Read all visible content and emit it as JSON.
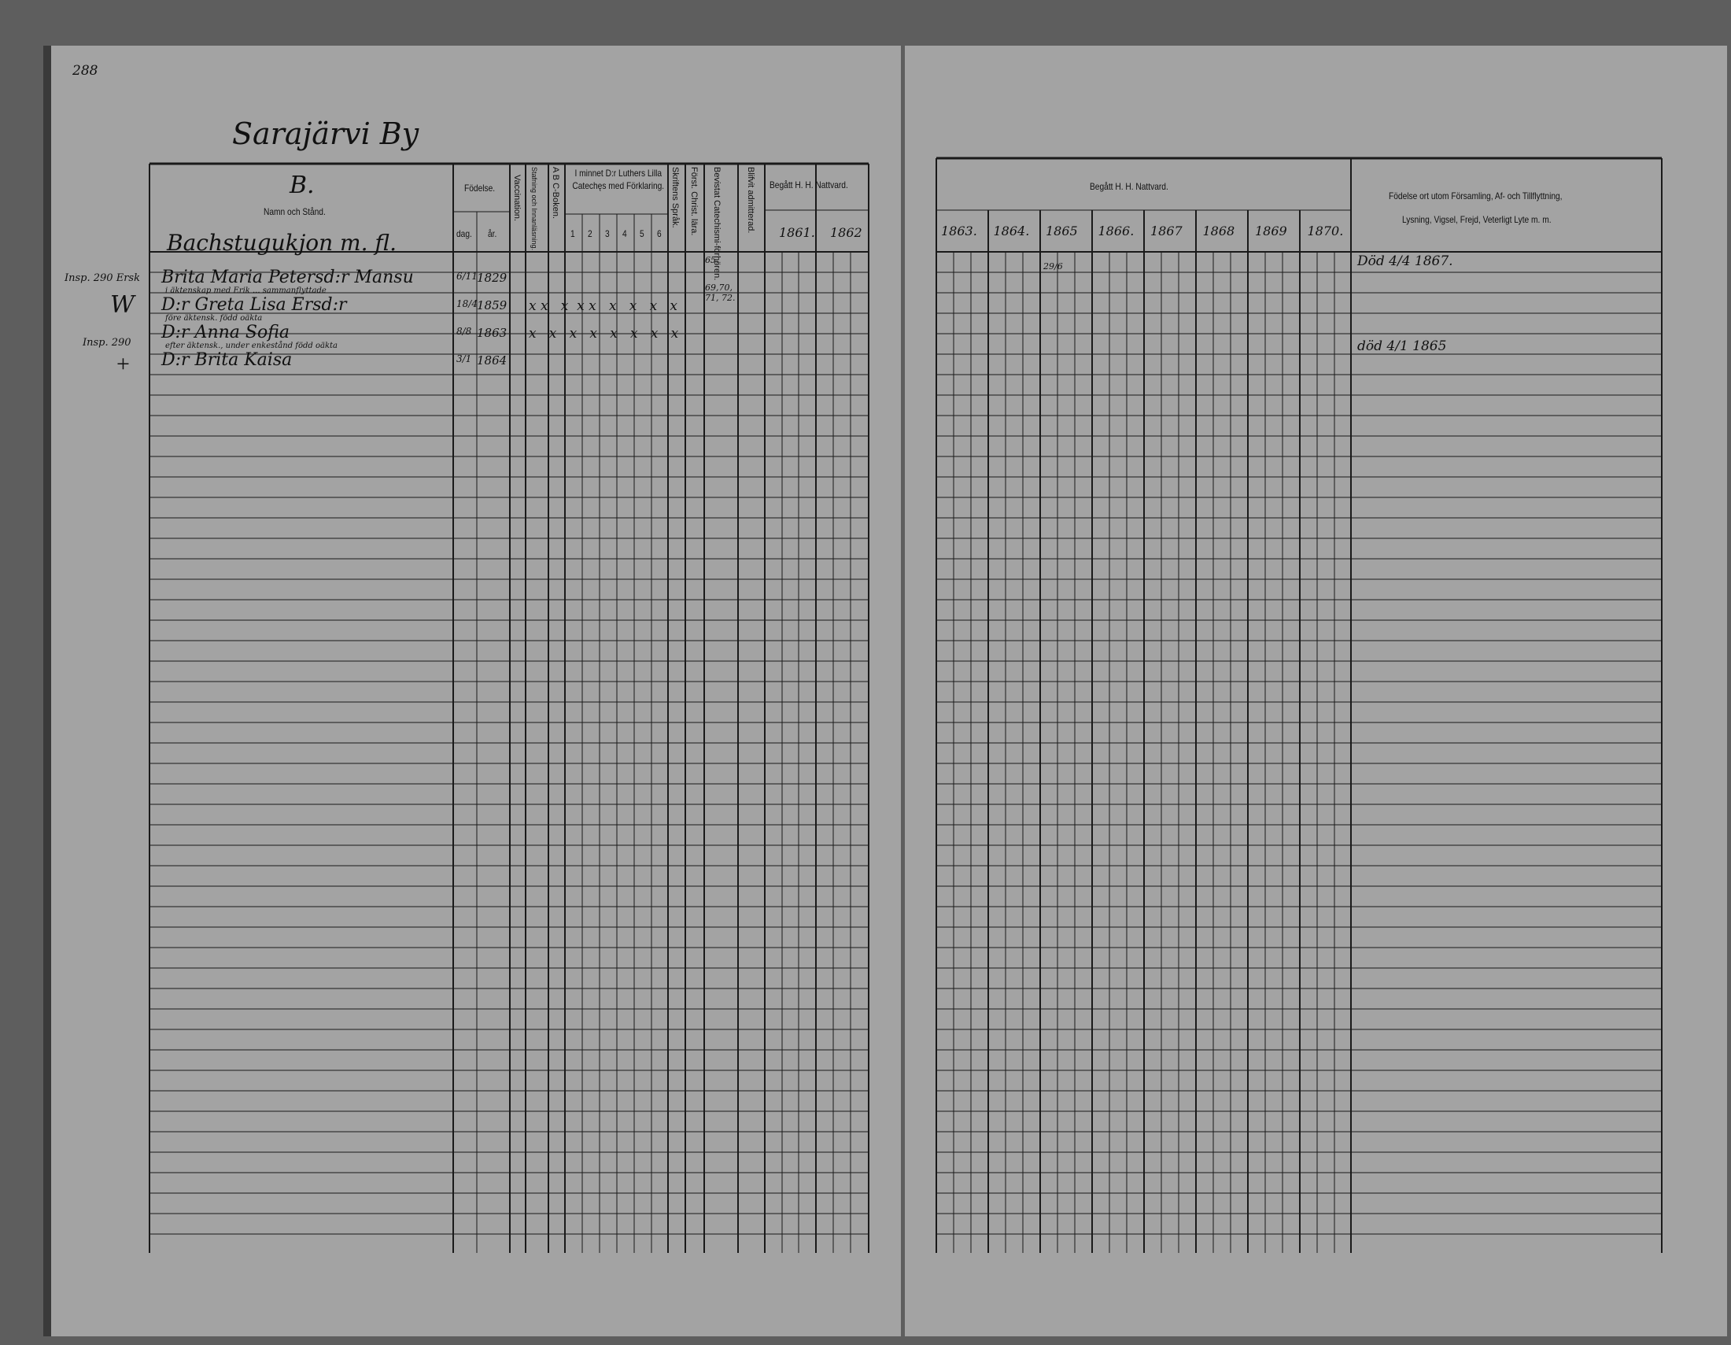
{
  "page_number": "288",
  "village_title": "Sarajärvi By",
  "left_table": {
    "section_letter": "B.",
    "name_header": "Namn och Stånd.",
    "household": "Bachstugukjon m. fl.",
    "birth_header": "Födelse.",
    "birth_day": "dag.",
    "birth_year": "år.",
    "vaccination": "Vaccination.",
    "spelling": "Stafning och Innanläsning.",
    "abc_book": "A B C-Boken.",
    "catechism_header": "I minnet D:r Luthers Lilla Catechęs med Förklaring.",
    "catechism_cols": [
      "1",
      "2",
      "3",
      "4",
      "5",
      "6"
    ],
    "scripture": "Skriftens Språk.",
    "christian": "Först. Christ. lära.",
    "catechism_hearing": "Bevistat Catechismi-förhören.",
    "admitted": "Blifvit admitterad.",
    "communion_header": "Begått H. H. Nattvard.",
    "years": [
      "1861.",
      "1862"
    ]
  },
  "right_table": {
    "communion_header": "Begått H. H. Nattvard.",
    "years": [
      "1863.",
      "1864.",
      "1865",
      "1866.",
      "1867",
      "1868",
      "1869",
      "1870."
    ],
    "remarks_header_1": "Födelse ort utom Församling, Af- och Tillflyttning,",
    "remarks_header_2": "Lysning, Vigsel, Frejd, Veterligt Lyte m. m."
  },
  "margin_notes": [
    "Insp. 290 Ersk",
    "W",
    "Insp. 290",
    "+"
  ],
  "entries": [
    {
      "name": "Brita Maria Petersd:r Mansu",
      "day": "6/11",
      "year": "1829",
      "marks": "",
      "hearing": "65,",
      "year_1865": "29/6",
      "remark": "Död 4/4 1867.",
      "note": "i äktenskap med Erik ... sammanflyttade"
    },
    {
      "name": "D:r Greta Lisa Ersd:r",
      "day": "18/4",
      "year": "1859",
      "marks": "x x   x  x x   x   x   x   x",
      "hearing": "69,70, 71, 72.",
      "note": "före äktensk. född oäkta"
    },
    {
      "name": "D:r Anna Sofia",
      "day": "8/8",
      "year": "1863",
      "marks": "x   x   x   x   x   x   x   x",
      "hearing": "",
      "note": "efter äktensk., under enkestånd född oäkta"
    },
    {
      "name": "D:r Brita Kaisa",
      "day": "3/1",
      "year": "1864",
      "marks": "",
      "hearing": "",
      "remark": "död 4/1 1865"
    }
  ],
  "colors": {
    "paper": "#a3a3a3",
    "ink": "#111111",
    "background": "#5e5e5e"
  }
}
